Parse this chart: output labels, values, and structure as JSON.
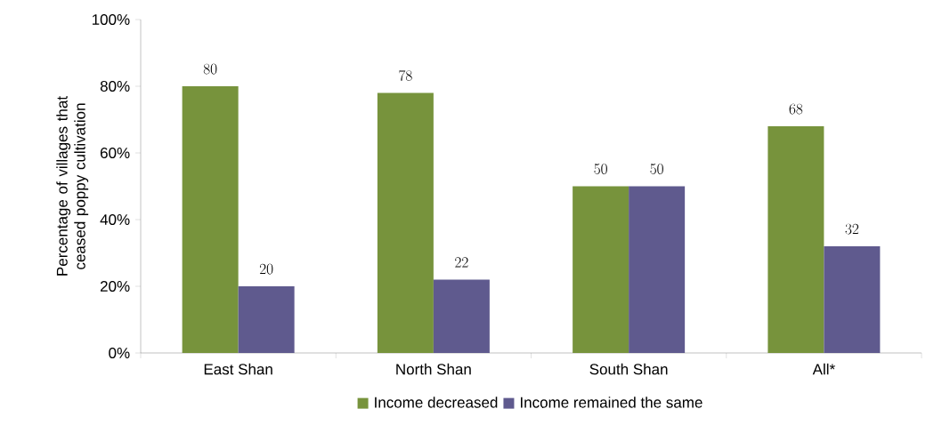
{
  "chart_data": {
    "type": "bar",
    "categories": [
      "East Shan",
      "North Shan",
      "South Shan",
      "All*"
    ],
    "series": [
      {
        "name": "Income decreased",
        "color": "#77933c",
        "values": [
          80,
          78,
          50,
          68
        ]
      },
      {
        "name": "Income remained the same",
        "color": "#5f5a8e",
        "values": [
          20,
          22,
          50,
          32
        ]
      }
    ],
    "ylabel": "Percentage of villages that ceased poppy cultivation",
    "ylim": [
      0,
      100
    ],
    "yticks": [
      {
        "value": 0,
        "label": "0%"
      },
      {
        "value": 20,
        "label": "20%"
      },
      {
        "value": 40,
        "label": "40%"
      },
      {
        "value": 60,
        "label": "60%"
      },
      {
        "value": 80,
        "label": "80%"
      },
      {
        "value": 100,
        "label": "100%"
      }
    ],
    "data_labels": true,
    "grid": false,
    "legend": "bottom"
  }
}
